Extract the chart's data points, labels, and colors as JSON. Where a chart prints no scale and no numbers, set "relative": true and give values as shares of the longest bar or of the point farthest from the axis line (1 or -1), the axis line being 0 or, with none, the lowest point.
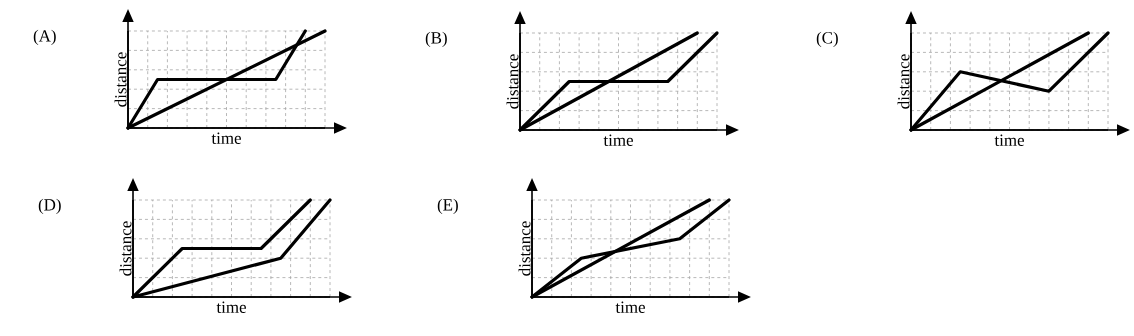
{
  "chart_data": [
    {
      "type": "line",
      "title": "(A)",
      "xlabel": "time",
      "ylabel": "distance",
      "relative": true,
      "grid": true,
      "tick_labels": false,
      "marker": "none",
      "line_style": "solid",
      "categories": [
        null,
        null,
        null,
        null,
        null,
        null,
        null,
        null,
        null,
        null,
        null,
        null,
        null,
        null,
        null,
        null,
        null,
        null,
        null,
        null,
        null
      ],
      "series": [
        {
          "color": "#000000",
          "values": [
            0,
            null,
            null,
            null,
            null,
            null,
            null,
            null,
            null,
            null,
            null,
            null,
            null,
            null,
            null,
            null,
            null,
            null,
            null,
            null,
            1
          ]
        },
        {
          "color": "#000000",
          "values": [
            0,
            null,
            null,
            0.5,
            null,
            null,
            null,
            null,
            null,
            null,
            null,
            null,
            null,
            null,
            null,
            0.5,
            null,
            null,
            1,
            null,
            null
          ]
        }
      ]
    },
    {
      "type": "line",
      "title": "(B)",
      "xlabel": "time",
      "ylabel": "distance",
      "relative": true,
      "grid": true,
      "tick_labels": false,
      "marker": "none",
      "line_style": "solid",
      "categories": [
        null,
        null,
        null,
        null,
        null,
        null,
        null,
        null,
        null,
        null,
        null,
        null,
        null,
        null,
        null,
        null,
        null,
        null,
        null,
        null,
        null
      ],
      "series": [
        {
          "color": "#000000",
          "values": [
            0,
            null,
            null,
            null,
            null,
            null,
            null,
            null,
            null,
            null,
            null,
            null,
            null,
            null,
            null,
            null,
            null,
            null,
            1,
            null,
            null
          ]
        },
        {
          "color": "#000000",
          "values": [
            0,
            null,
            null,
            null,
            null,
            0.5,
            null,
            null,
            null,
            null,
            null,
            null,
            null,
            null,
            null,
            0.5,
            null,
            null,
            null,
            null,
            1
          ]
        }
      ]
    },
    {
      "type": "line",
      "title": "(C)",
      "xlabel": "time",
      "ylabel": "distance",
      "relative": true,
      "grid": true,
      "tick_labels": false,
      "marker": "none",
      "line_style": "solid",
      "categories": [
        null,
        null,
        null,
        null,
        null,
        null,
        null,
        null,
        null,
        null,
        null,
        null,
        null,
        null,
        null,
        null,
        null,
        null,
        null,
        null,
        null
      ],
      "series": [
        {
          "color": "#000000",
          "values": [
            0,
            null,
            null,
            null,
            null,
            null,
            null,
            null,
            null,
            null,
            null,
            null,
            null,
            null,
            null,
            null,
            null,
            null,
            1,
            null,
            null
          ]
        },
        {
          "color": "#000000",
          "values": [
            0,
            null,
            null,
            null,
            null,
            0.6,
            null,
            null,
            null,
            null,
            null,
            null,
            null,
            null,
            0.4,
            null,
            null,
            null,
            null,
            null,
            1
          ]
        }
      ]
    },
    {
      "type": "line",
      "title": "(D)",
      "xlabel": "time",
      "ylabel": "distance",
      "relative": true,
      "grid": true,
      "tick_labels": false,
      "marker": "none",
      "line_style": "solid",
      "categories": [
        null,
        null,
        null,
        null,
        null,
        null,
        null,
        null,
        null,
        null,
        null,
        null,
        null,
        null,
        null,
        null,
        null,
        null,
        null,
        null,
        null
      ],
      "series": [
        {
          "color": "#000000",
          "values": [
            0,
            null,
            null,
            null,
            null,
            0.5,
            null,
            null,
            null,
            null,
            null,
            null,
            null,
            0.5,
            null,
            null,
            null,
            null,
            1,
            null,
            null
          ]
        },
        {
          "color": "#000000",
          "values": [
            0,
            null,
            null,
            null,
            null,
            null,
            null,
            null,
            null,
            null,
            null,
            null,
            null,
            null,
            null,
            0.4,
            null,
            null,
            null,
            null,
            1
          ]
        }
      ]
    },
    {
      "type": "line",
      "title": "(E)",
      "xlabel": "time",
      "ylabel": "distance",
      "relative": true,
      "grid": true,
      "tick_labels": false,
      "marker": "none",
      "line_style": "solid",
      "categories": [
        null,
        null,
        null,
        null,
        null,
        null,
        null,
        null,
        null,
        null,
        null,
        null,
        null,
        null,
        null,
        null,
        null,
        null,
        null,
        null,
        null
      ],
      "series": [
        {
          "color": "#000000",
          "values": [
            0,
            null,
            null,
            null,
            null,
            null,
            null,
            null,
            null,
            null,
            null,
            null,
            null,
            null,
            null,
            null,
            null,
            null,
            1,
            null,
            null
          ]
        },
        {
          "color": "#000000",
          "values": [
            0,
            null,
            null,
            null,
            null,
            0.4,
            null,
            null,
            null,
            null,
            null,
            null,
            null,
            null,
            null,
            0.6,
            null,
            null,
            null,
            null,
            1
          ]
        }
      ]
    }
  ]
}
